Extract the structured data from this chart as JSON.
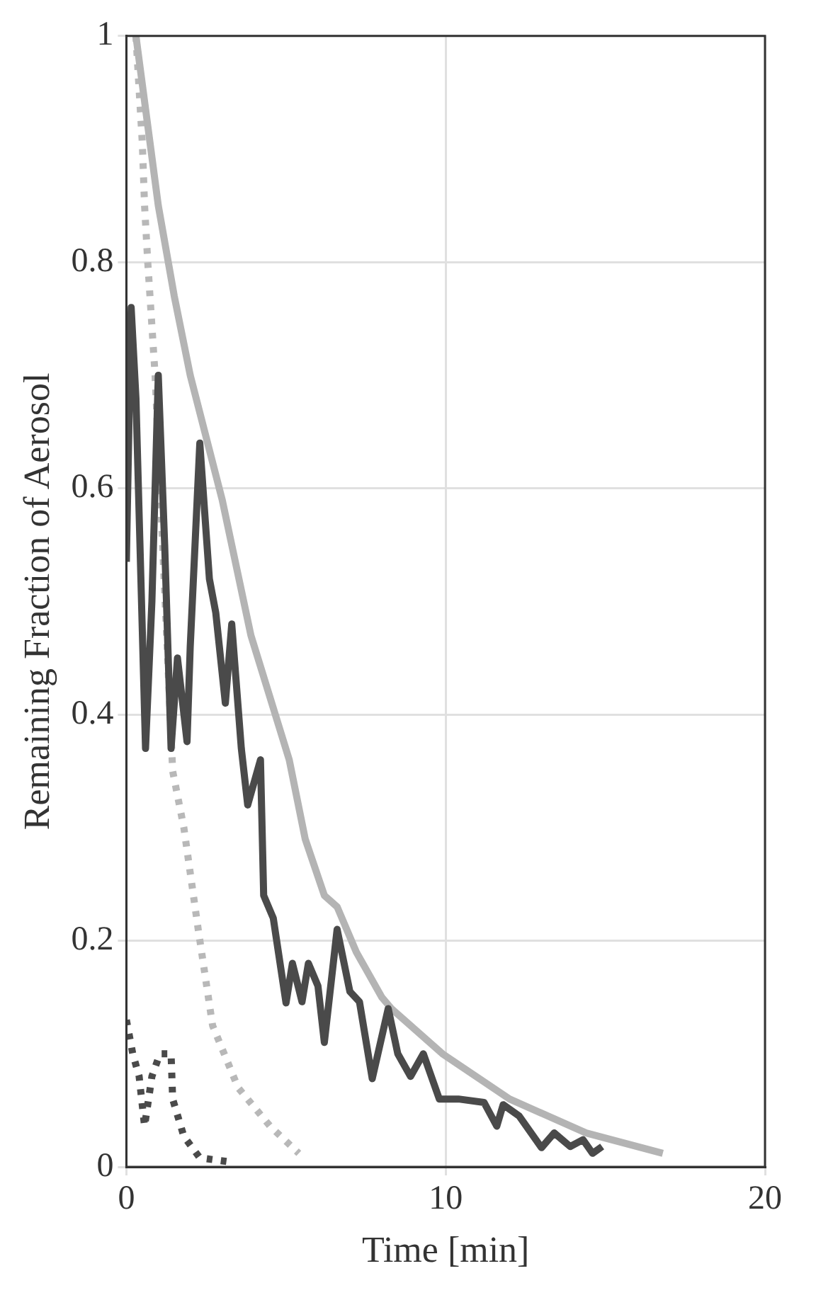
{
  "chart_data": {
    "type": "line",
    "xlabel": "Time [min]",
    "ylabel": "Remaining Fraction of Aerosol",
    "xlim": [
      0,
      20
    ],
    "xticks": [
      0,
      10,
      20
    ],
    "ylim": [
      0,
      1
    ],
    "yticks": [
      0,
      0.2,
      0.4,
      0.6,
      0.8,
      1
    ],
    "grid": true,
    "marker": "none",
    "series": [
      {
        "color": "#4a4a4a",
        "line_style": "solid",
        "x": [
          0,
          0.15,
          0.3,
          0.6,
          0.8,
          1.0,
          1.2,
          1.4,
          1.6,
          1.9,
          2.0,
          2.3,
          2.6,
          2.8,
          3.1,
          3.3,
          3.6,
          3.8,
          4.2,
          4.3,
          4.6,
          5.0,
          5.2,
          5.5,
          5.7,
          6.0,
          6.2,
          6.6,
          7.0,
          7.3,
          7.7,
          8.2,
          8.5,
          8.9,
          9.3,
          9.8,
          10.4,
          11.2,
          11.6,
          11.8,
          12.3,
          13.0,
          13.4,
          13.9,
          14.3,
          14.6,
          14.9
        ],
        "values": [
          0.535,
          0.76,
          0.68,
          0.37,
          0.5,
          0.7,
          0.55,
          0.37,
          0.45,
          0.376,
          0.46,
          0.64,
          0.52,
          0.49,
          0.41,
          0.48,
          0.37,
          0.32,
          0.36,
          0.24,
          0.22,
          0.145,
          0.18,
          0.146,
          0.18,
          0.16,
          0.11,
          0.21,
          0.155,
          0.146,
          0.078,
          0.14,
          0.1,
          0.08,
          0.1,
          0.06,
          0.06,
          0.057,
          0.036,
          0.055,
          0.045,
          0.017,
          0.03,
          0.018,
          0.024,
          0.012,
          0.018
        ]
      },
      {
        "color": "#b4b4b4",
        "line_style": "solid",
        "x": [
          0.3,
          1.0,
          1.5,
          2.0,
          3.0,
          3.9,
          5.1,
          5.6,
          6.2,
          6.6,
          7.2,
          8.0,
          8.3,
          9.9,
          12.0,
          14.4,
          16.8
        ],
        "values": [
          1.0,
          0.85,
          0.77,
          0.7,
          0.59,
          0.47,
          0.36,
          0.29,
          0.24,
          0.23,
          0.19,
          0.15,
          0.14,
          0.1,
          0.06,
          0.03,
          0.012
        ]
      },
      {
        "color": "#b8b8b8",
        "line_style": "dotted",
        "x": [
          0.3,
          0.5,
          0.57,
          0.67,
          0.9,
          1.45,
          1.8,
          2.25,
          2.7,
          3.5,
          4.5,
          5.4
        ],
        "values": [
          1.0,
          0.905,
          0.85,
          0.8,
          0.7,
          0.35,
          0.3,
          0.21,
          0.125,
          0.07,
          0.036,
          0.012
        ]
      },
      {
        "color": "#4a4a4a",
        "line_style": "dotted",
        "x": [
          0,
          0.2,
          0.4,
          0.57,
          0.8,
          1.05,
          1.4,
          1.45,
          1.8,
          2.3,
          3.35
        ],
        "values": [
          0.13,
          0.1,
          0.08,
          0.036,
          0.08,
          0.1,
          0.1,
          0.06,
          0.027,
          0.008,
          0.004
        ]
      }
    ]
  }
}
